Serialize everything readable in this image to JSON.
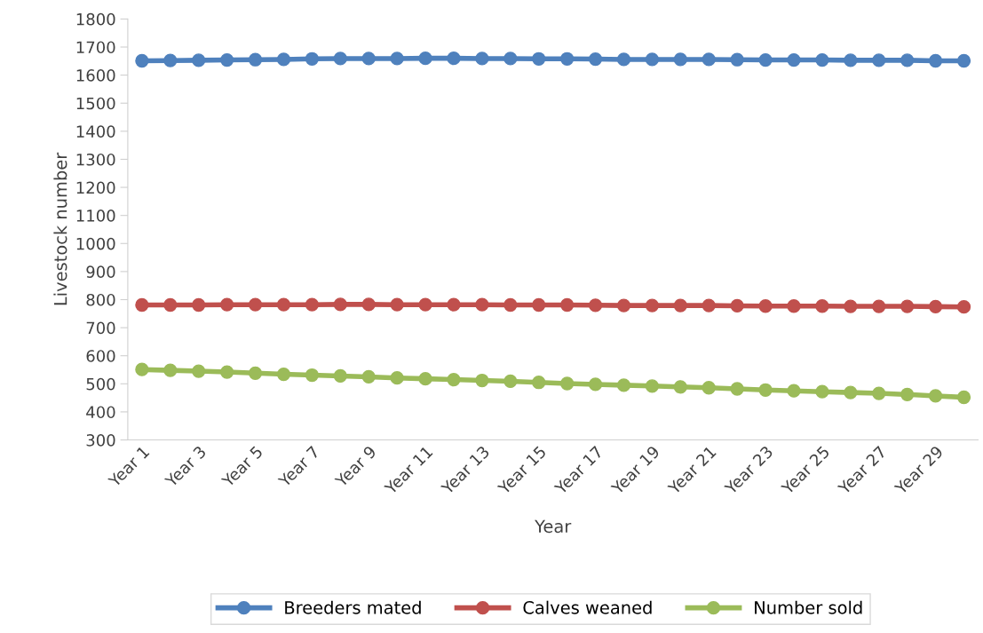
{
  "chart_data": {
    "type": "line",
    "xlabel": "Year",
    "ylabel": "Livestock number",
    "categories": [
      "Year 1",
      null,
      "Year 3",
      null,
      "Year 5",
      null,
      "Year 7",
      null,
      "Year 9",
      null,
      "Year 11",
      null,
      "Year 13",
      null,
      "Year 15",
      null,
      "Year 17",
      null,
      "Year 19",
      null,
      "Year 21",
      null,
      "Year 23",
      null,
      "Year 25",
      null,
      "Year 27",
      null,
      "Year 29",
      null
    ],
    "series": [
      {
        "name": "Breeders mated",
        "color": "#4f81bd",
        "values": [
          1651,
          1652,
          1653,
          1654,
          1655,
          1656,
          1658,
          1659,
          1659,
          1659,
          1660,
          1660,
          1659,
          1659,
          1658,
          1658,
          1657,
          1656,
          1656,
          1656,
          1656,
          1655,
          1654,
          1654,
          1654,
          1653,
          1653,
          1653,
          1651,
          1651
        ]
      },
      {
        "name": "Calves weaned",
        "color": "#c0504d",
        "values": [
          781,
          781,
          781,
          782,
          782,
          782,
          782,
          783,
          783,
          782,
          782,
          782,
          782,
          781,
          781,
          781,
          780,
          779,
          779,
          779,
          779,
          778,
          777,
          777,
          777,
          776,
          776,
          776,
          775,
          774
        ]
      },
      {
        "name": "Number sold",
        "color": "#9bbb59",
        "values": [
          551,
          548,
          545,
          542,
          538,
          534,
          531,
          528,
          525,
          521,
          518,
          515,
          512,
          509,
          505,
          501,
          498,
          495,
          492,
          489,
          486,
          482,
          478,
          475,
          472,
          469,
          466,
          462,
          457,
          452
        ]
      }
    ],
    "ylim": [
      300,
      1800
    ],
    "yticks": [
      300,
      400,
      500,
      600,
      700,
      800,
      900,
      1000,
      1100,
      1200,
      1300,
      1400,
      1500,
      1600,
      1700,
      1800
    ],
    "grid": false,
    "legend": "bottom",
    "marker": "circle",
    "line_style": "solid"
  }
}
